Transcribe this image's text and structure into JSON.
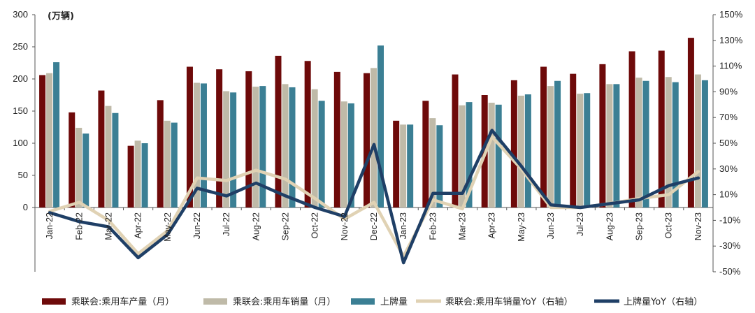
{
  "chart_data": {
    "type": "bar",
    "unit_label": "(万辆)",
    "categories": [
      "Jan-22",
      "Feb-22",
      "Mar-22",
      "Apr-22",
      "May-22",
      "Jun-22",
      "Jul-22",
      "Aug-22",
      "Sep-22",
      "Oct-22",
      "Nov-22",
      "Dec-22",
      "Jan-23",
      "Feb-23",
      "Mar-23",
      "Apr-23",
      "May-23",
      "Jun-23",
      "Jul-23",
      "Aug-23",
      "Sep-23",
      "Oct-23",
      "Nov-23"
    ],
    "y_left": {
      "min": 0,
      "max": 300,
      "ticks": [
        "300",
        "250",
        "200",
        "150",
        "100",
        "50",
        "0"
      ]
    },
    "y_right": {
      "min": -50,
      "max": 150,
      "ticks": [
        "150%",
        "130%",
        "110%",
        "90%",
        "70%",
        "50%",
        "30%",
        "10%",
        "-10%",
        "-30%",
        "-50%"
      ]
    },
    "bar_series": [
      {
        "name": "乘联会:乘用车产量（月）",
        "color": "#6e0a0a",
        "values": [
          206,
          148,
          182,
          96,
          167,
          219,
          215,
          212,
          236,
          228,
          211,
          209,
          135,
          166,
          207,
          175,
          198,
          219,
          208,
          223,
          243,
          244,
          264
        ]
      },
      {
        "name": "乘联会:乘用车销量（月）",
        "color": "#bfbaa8",
        "values": [
          209,
          124,
          158,
          104,
          135,
          194,
          181,
          188,
          192,
          184,
          165,
          217,
          129,
          139,
          159,
          163,
          174,
          189,
          177,
          192,
          202,
          203,
          207
        ]
      },
      {
        "name": "上牌量",
        "color": "#3b7f94",
        "values": [
          226,
          115,
          147,
          100,
          132,
          193,
          179,
          189,
          187,
          166,
          162,
          252,
          129,
          128,
          164,
          160,
          176,
          197,
          178,
          192,
          197,
          195,
          198
        ]
      }
    ],
    "line_series": [
      {
        "name": "乘联会:乘用车销量YoY（右轴）",
        "color": "#e0d2b4",
        "values": [
          -3,
          4,
          -10,
          -36,
          -18,
          23,
          21,
          29,
          22,
          7,
          -9,
          4,
          -38,
          6,
          -1,
          55,
          30,
          0,
          0,
          3,
          7,
          10,
          28
        ]
      },
      {
        "name": "上牌量YoY（右轴）",
        "color": "#1f3f66",
        "values": [
          -4,
          -11,
          -15,
          -39,
          -21,
          15,
          9,
          19,
          9,
          0,
          -7,
          49,
          -43,
          11,
          11,
          60,
          32,
          2,
          0,
          3,
          6,
          17,
          23
        ]
      }
    ]
  }
}
